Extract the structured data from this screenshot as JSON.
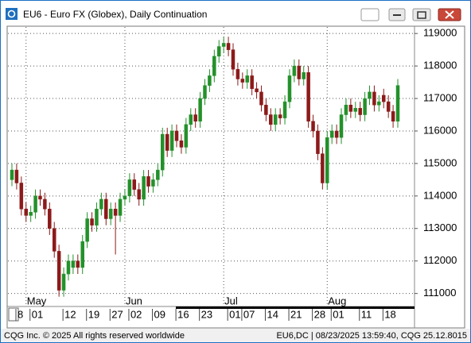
{
  "window": {
    "title": "EU6 - Euro FX (Globex), Daily Continuation",
    "footer_left": "CQG Inc. © 2025 All rights reserved worldwide",
    "footer_right": "EU6,DC | 08/23/2025 13:59:40, CQG 25.12.8015"
  },
  "chart_data": {
    "type": "candlestick",
    "categories": [
      "8",
      null,
      null,
      "01",
      null,
      null,
      null,
      null,
      null,
      null,
      "12",
      null,
      null,
      null,
      null,
      "19",
      null,
      null,
      null,
      null,
      "27",
      null,
      null,
      null,
      "02",
      null,
      null,
      null,
      null,
      "09",
      null,
      null,
      null,
      null,
      "16",
      null,
      null,
      null,
      null,
      "23",
      null,
      null,
      null,
      null,
      null,
      "01",
      null,
      null,
      "07",
      null,
      null,
      null,
      null,
      "14",
      null,
      null,
      null,
      null,
      "21",
      null,
      null,
      null,
      null,
      "28",
      null,
      null,
      null,
      "01",
      null,
      null,
      null,
      null,
      null,
      "11",
      null,
      null,
      null,
      null,
      "18",
      null,
      null,
      null,
      null
    ],
    "months": [
      null,
      null,
      null,
      "May",
      null,
      null,
      null,
      null,
      null,
      null,
      null,
      null,
      null,
      null,
      null,
      null,
      null,
      null,
      null,
      null,
      null,
      null,
      null,
      null,
      "Jun",
      null,
      null,
      null,
      null,
      null,
      null,
      null,
      null,
      null,
      null,
      null,
      null,
      null,
      null,
      null,
      null,
      null,
      null,
      null,
      null,
      "Jul",
      null,
      null,
      null,
      null,
      null,
      null,
      null,
      null,
      null,
      null,
      null,
      null,
      null,
      null,
      null,
      null,
      null,
      null,
      null,
      null,
      null,
      "Aug",
      null,
      null,
      null,
      null,
      null,
      null,
      null,
      null,
      null,
      null,
      null,
      null,
      null,
      null,
      null
    ],
    "open": [
      114500,
      114800,
      114400,
      113600,
      113400,
      113500,
      114000,
      113900,
      113600,
      113000,
      112300,
      111100,
      111600,
      111800,
      112000,
      111800,
      112600,
      113300,
      113100,
      113600,
      113900,
      113300,
      113600,
      113400,
      113900,
      114000,
      114500,
      114200,
      113900,
      114600,
      114300,
      114500,
      114800,
      115900,
      115400,
      116000,
      115700,
      115500,
      116200,
      116500,
      116300,
      117000,
      117400,
      117700,
      118300,
      118600,
      118700,
      118500,
      117900,
      117600,
      117500,
      117700,
      117300,
      117200,
      116800,
      116500,
      116200,
      116500,
      116400,
      116900,
      117700,
      118000,
      117600,
      117800,
      116300,
      116000,
      115300,
      114400,
      115800,
      116000,
      115800,
      116500,
      116800,
      116600,
      116700,
      116500,
      117000,
      117200,
      116800,
      117100,
      116900,
      116600,
      116300
    ],
    "high": [
      115000,
      115000,
      114600,
      113800,
      113700,
      114200,
      114200,
      114100,
      113800,
      113200,
      112500,
      111800,
      112200,
      112200,
      112200,
      112800,
      113500,
      113500,
      113800,
      114100,
      114100,
      113800,
      113800,
      114100,
      114200,
      114700,
      114700,
      114400,
      114800,
      114800,
      114700,
      115000,
      116100,
      116100,
      116200,
      116200,
      115900,
      116400,
      116700,
      116700,
      117200,
      117600,
      117900,
      118500,
      118800,
      118900,
      118900,
      118700,
      118100,
      117800,
      117900,
      117900,
      117500,
      117400,
      117000,
      116700,
      116700,
      116700,
      117100,
      117900,
      118200,
      118200,
      118000,
      118000,
      116500,
      116200,
      115500,
      116000,
      116200,
      116200,
      116700,
      117000,
      117000,
      116900,
      116900,
      117200,
      117400,
      117400,
      117100,
      117300,
      117100,
      116800,
      117600
    ],
    "low": [
      114300,
      114200,
      113400,
      113200,
      113200,
      113300,
      113700,
      113400,
      112800,
      112100,
      110900,
      110900,
      111400,
      111600,
      111600,
      111600,
      112400,
      112900,
      112900,
      113400,
      113100,
      113100,
      112200,
      113200,
      113700,
      113800,
      114000,
      113700,
      113700,
      114100,
      114100,
      114300,
      114600,
      115200,
      115200,
      115500,
      115300,
      115300,
      116000,
      116100,
      116100,
      116800,
      117200,
      117500,
      118100,
      118400,
      118300,
      117700,
      117400,
      117300,
      117300,
      117100,
      117000,
      116600,
      116300,
      116000,
      116000,
      116200,
      116200,
      116700,
      117500,
      117400,
      117400,
      116100,
      115800,
      115100,
      114200,
      114200,
      115600,
      115600,
      115600,
      116300,
      116400,
      116400,
      116300,
      116300,
      116800,
      116600,
      116600,
      116700,
      116400,
      116100,
      116100
    ],
    "close": [
      114800,
      114400,
      113600,
      113400,
      113500,
      114000,
      113900,
      113600,
      113000,
      112300,
      111100,
      111600,
      112000,
      112000,
      111800,
      112600,
      113300,
      113100,
      113600,
      113900,
      113300,
      113600,
      113400,
      113900,
      114000,
      114500,
      114200,
      113900,
      114600,
      114300,
      114500,
      114800,
      115900,
      115400,
      116000,
      115700,
      115500,
      116200,
      116500,
      116300,
      117000,
      117400,
      117700,
      118300,
      118600,
      118700,
      118500,
      117900,
      117600,
      117500,
      117700,
      117300,
      117200,
      116800,
      116500,
      116200,
      116500,
      116400,
      116900,
      117700,
      118000,
      117600,
      117800,
      116300,
      116000,
      115300,
      114400,
      115800,
      116000,
      115800,
      116500,
      116800,
      116600,
      116700,
      116500,
      117000,
      117200,
      116800,
      116900,
      116900,
      116600,
      116300,
      117400
    ],
    "up_color": "#23912a",
    "down_color": "#8c1a1a",
    "ylim": [
      110600,
      119200
    ],
    "yticks": [
      111000,
      112000,
      113000,
      114000,
      115000,
      116000,
      117000,
      118000,
      119000
    ],
    "grid": true
  }
}
